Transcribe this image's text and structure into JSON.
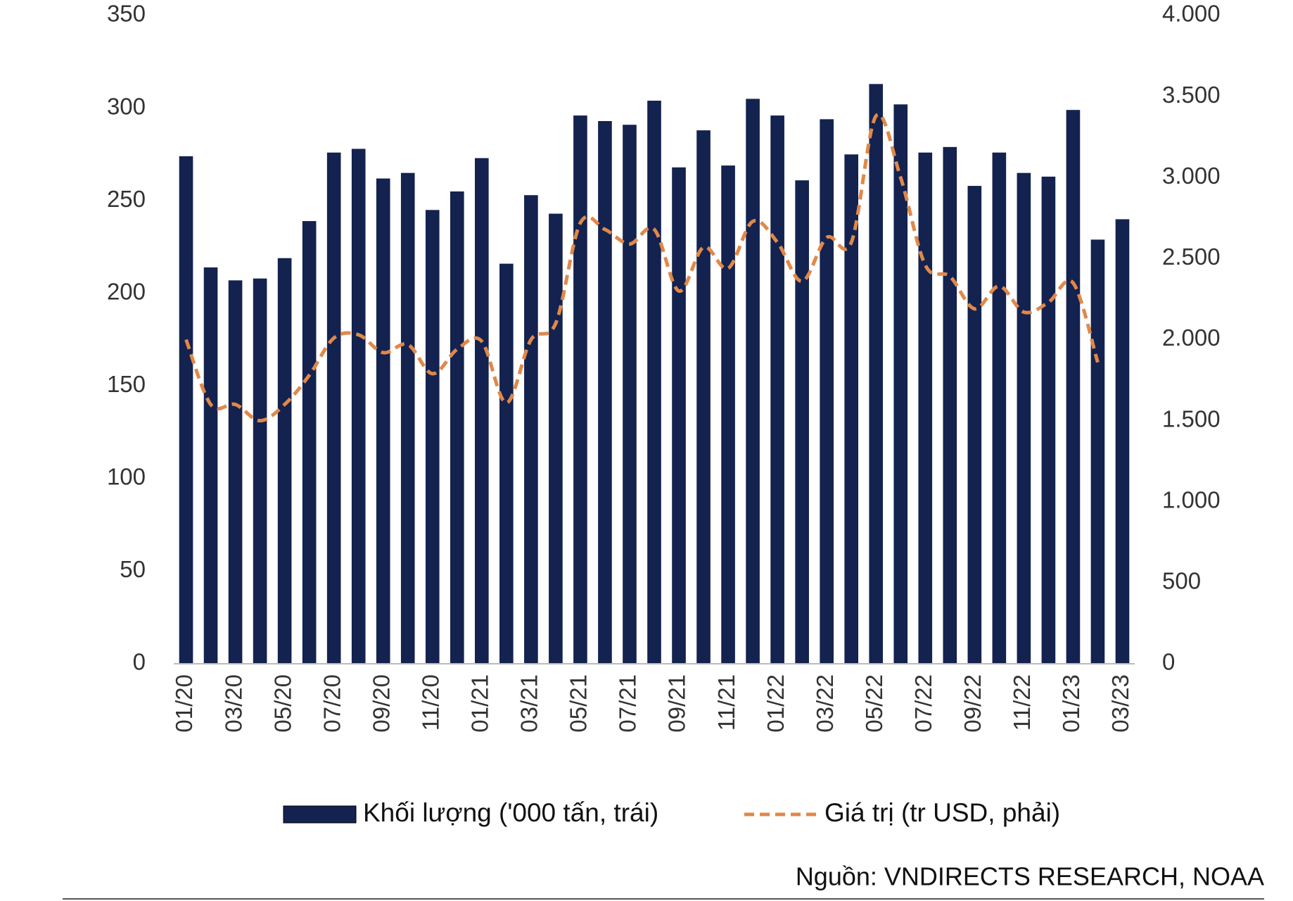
{
  "chart_data": {
    "type": "bar_line",
    "categories": [
      "01/20",
      null,
      "03/20",
      null,
      "05/20",
      null,
      "07/20",
      null,
      "09/20",
      null,
      "11/20",
      null,
      "01/21",
      null,
      "03/21",
      null,
      "05/21",
      null,
      "07/21",
      null,
      "09/21",
      null,
      "11/21",
      null,
      "01/22",
      null,
      "03/22",
      null,
      "05/22",
      null,
      "07/22",
      null,
      "09/22",
      null,
      "11/22",
      null,
      "01/23",
      null,
      "03/23"
    ],
    "series": [
      {
        "name": "Khối lượng ('000 tấn, trái)",
        "color": "#13224f",
        "type": "bar",
        "values": [
          274,
          214,
          207,
          208,
          219,
          239,
          276,
          278,
          262,
          265,
          245,
          255,
          273,
          216,
          253,
          243,
          296,
          293,
          291,
          304,
          268,
          288,
          269,
          305,
          296,
          261,
          294,
          275,
          313,
          302,
          276,
          279,
          258,
          276,
          265,
          263,
          299,
          229,
          240
        ]
      },
      {
        "name": "Giá trị (tr USD, phải)",
        "color": "#e0884a",
        "type": "line",
        "axis": "y2",
        "values": [
          2000,
          1600,
          1600,
          1500,
          1600,
          1780,
          2010,
          2030,
          1920,
          1970,
          1790,
          1940,
          1990,
          1610,
          2000,
          2100,
          2720,
          2680,
          2590,
          2680,
          2300,
          2570,
          2440,
          2730,
          2600,
          2360,
          2630,
          2600,
          3380,
          3000,
          2460,
          2390,
          2190,
          2330,
          2170,
          2230,
          2350,
          1860,
          null
        ]
      }
    ],
    "ylim": [
      0,
      350
    ],
    "yticks": [
      0,
      50,
      100,
      150,
      200,
      250,
      300,
      350
    ],
    "y2lim": [
      0,
      4000
    ],
    "y2ticks": [
      0,
      500,
      {
        "value": 1000,
        "label": "1.000"
      },
      {
        "value": 1500,
        "label": "1.500"
      },
      {
        "value": 2000,
        "label": "2.000"
      },
      {
        "value": 2500,
        "label": "2.500"
      },
      {
        "value": 3000,
        "label": "3.000"
      },
      {
        "value": 3500,
        "label": "3.500"
      },
      {
        "value": 4000,
        "label": "4.000"
      }
    ],
    "legend": "bottom",
    "source": "Nguồn: VNDIRECTS RESEARCH, NOAA"
  }
}
